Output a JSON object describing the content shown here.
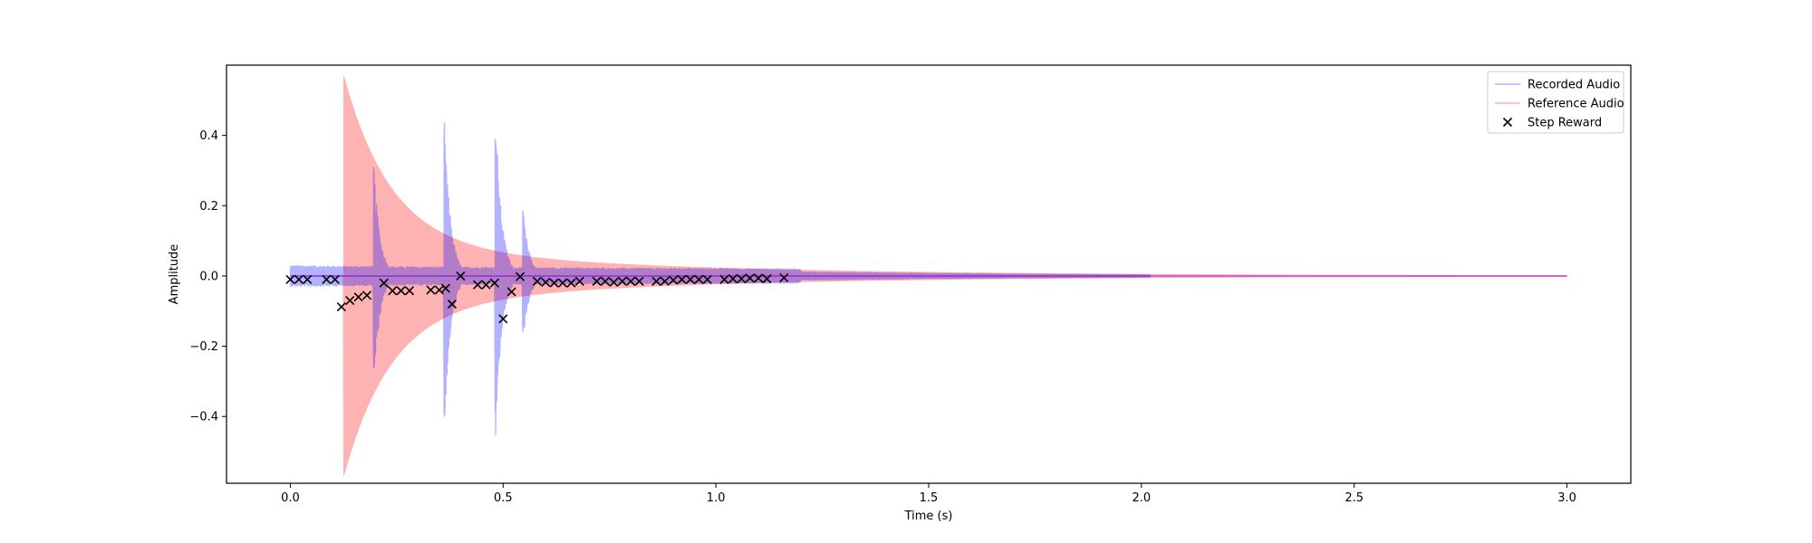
{
  "chart_data": {
    "type": "line",
    "xlabel": "Time (s)",
    "ylabel": "Amplitude",
    "xlim": [
      -0.15,
      3.15
    ],
    "ylim": [
      -0.59,
      0.6
    ],
    "xticks": [
      0.0,
      0.5,
      1.0,
      1.5,
      2.0,
      2.5,
      3.0
    ],
    "xtick_labels": [
      "0.0",
      "0.5",
      "1.0",
      "1.5",
      "2.0",
      "2.5",
      "3.0"
    ],
    "yticks": [
      -0.4,
      -0.2,
      0.0,
      0.2,
      0.4
    ],
    "ytick_labels": [
      "−0.4",
      "−0.2",
      "0.0",
      "0.2",
      "0.4"
    ],
    "grid": false,
    "legend_position": "top-right",
    "series": [
      {
        "name": "Recorded Audio",
        "kind": "line",
        "color": "#0000ff",
        "alpha": 0.3,
        "duration": 2.02,
        "onsets": [
          {
            "t": 0.195,
            "amp": 0.35
          },
          {
            "t": 0.36,
            "amp": 0.52
          },
          {
            "t": 0.48,
            "amp": 0.55
          },
          {
            "t": 0.545,
            "amp": 0.22
          }
        ]
      },
      {
        "name": "Reference Audio",
        "kind": "line",
        "color": "#ff0000",
        "alpha": 0.3,
        "duration": 3.0,
        "onsets": [
          {
            "t": 0.125,
            "amp": 0.48
          }
        ]
      },
      {
        "name": "Step Reward",
        "kind": "scatter",
        "marker": "x",
        "color": "#000000",
        "x": [
          0.0,
          0.02,
          0.04,
          0.085,
          0.105,
          0.12,
          0.14,
          0.16,
          0.18,
          0.22,
          0.24,
          0.26,
          0.28,
          0.33,
          0.35,
          0.365,
          0.38,
          0.4,
          0.44,
          0.46,
          0.48,
          0.5,
          0.52,
          0.54,
          0.58,
          0.6,
          0.62,
          0.64,
          0.66,
          0.68,
          0.72,
          0.74,
          0.76,
          0.78,
          0.8,
          0.82,
          0.86,
          0.88,
          0.9,
          0.92,
          0.94,
          0.96,
          0.98,
          1.02,
          1.04,
          1.06,
          1.08,
          1.1,
          1.12,
          1.16
        ],
        "y": [
          -0.01,
          -0.01,
          -0.01,
          -0.01,
          -0.01,
          -0.088,
          -0.07,
          -0.06,
          -0.055,
          -0.02,
          -0.042,
          -0.042,
          -0.042,
          -0.04,
          -0.04,
          -0.035,
          -0.08,
          0.0,
          -0.025,
          -0.025,
          -0.02,
          -0.122,
          -0.045,
          -0.002,
          -0.015,
          -0.018,
          -0.02,
          -0.02,
          -0.02,
          -0.015,
          -0.015,
          -0.015,
          -0.018,
          -0.015,
          -0.015,
          -0.015,
          -0.015,
          -0.015,
          -0.012,
          -0.01,
          -0.01,
          -0.01,
          -0.01,
          -0.01,
          -0.008,
          -0.008,
          -0.006,
          -0.006,
          -0.008,
          -0.005
        ]
      }
    ]
  }
}
